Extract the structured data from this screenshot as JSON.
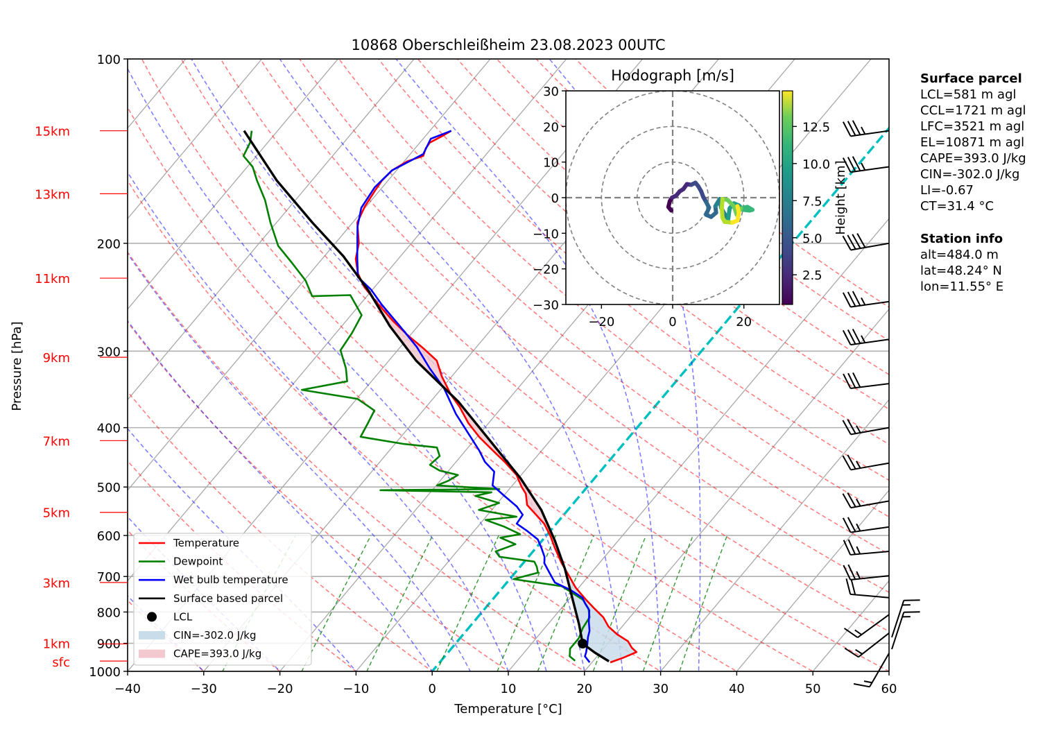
{
  "chart_data": {
    "type": "skew-t",
    "title": "10868 Oberschleißheim 23.08.2023 00UTC",
    "xlabel": "Temperature [°C]",
    "ylabel": "Pressure [hPa]",
    "xlim": [
      -40,
      60
    ],
    "ylim": [
      1000,
      100
    ],
    "x_ticks": [
      -40,
      -30,
      -20,
      -10,
      0,
      10,
      20,
      30,
      40,
      50,
      60
    ],
    "x_tick_labels": [
      "−40",
      "−30",
      "−20",
      "−10",
      "0",
      "10",
      "20",
      "30",
      "40",
      "50",
      "60"
    ],
    "y_ticks": [
      100,
      200,
      300,
      400,
      500,
      600,
      700,
      800,
      900,
      1000
    ],
    "y_tick_labels": [
      "100",
      "200",
      "300",
      "400",
      "500",
      "600",
      "700",
      "800",
      "900",
      "1000"
    ],
    "height_markers": [
      {
        "label": "15km",
        "p": 131
      },
      {
        "label": "13km",
        "p": 166
      },
      {
        "label": "11km",
        "p": 228
      },
      {
        "label": "9km",
        "p": 307
      },
      {
        "label": "7km",
        "p": 420
      },
      {
        "label": "5km",
        "p": 550
      },
      {
        "label": "3km",
        "p": 716
      },
      {
        "label": "1km",
        "p": 902
      },
      {
        "label": "sfc",
        "p": 962
      }
    ],
    "grid": true,
    "isotherm_highlight_c": 0,
    "isotherms_c": [
      -120,
      -110,
      -100,
      -90,
      -80,
      -70,
      -60,
      -50,
      -40,
      -30,
      -20,
      -10,
      0,
      10,
      20,
      30,
      40,
      50,
      60
    ],
    "dry_adiabats_c": [
      -30,
      -20,
      -10,
      0,
      10,
      20,
      30,
      40,
      50,
      60,
      70,
      80,
      90,
      100,
      110,
      120,
      130,
      140,
      150,
      160
    ],
    "moist_adiabats_c": [
      -30,
      -20,
      -10,
      0,
      5,
      10,
      15,
      20,
      25,
      30,
      35
    ],
    "mixing_ratios_gkg": [
      0.4,
      1,
      2,
      4,
      7,
      10,
      16,
      24,
      32
    ],
    "series": [
      {
        "name": "Temperature",
        "color": "#ff0000",
        "points": [
          [
            967,
            22.4
          ],
          [
            950,
            23.6
          ],
          [
            930,
            24.7
          ],
          [
            915,
            23.6
          ],
          [
            893,
            22.4
          ],
          [
            870,
            20.2
          ],
          [
            845,
            18.2
          ],
          [
            816,
            16.5
          ],
          [
            790,
            14.4
          ],
          [
            764,
            12.3
          ],
          [
            730,
            9.6
          ],
          [
            698,
            7.4
          ],
          [
            665,
            5.0
          ],
          [
            629,
            2.5
          ],
          [
            600,
            0.5
          ],
          [
            574,
            -1.6
          ],
          [
            550,
            -4.2
          ],
          [
            535,
            -5.9
          ],
          [
            513,
            -7.3
          ],
          [
            500,
            -8.6
          ],
          [
            478,
            -10.6
          ],
          [
            455,
            -13.6
          ],
          [
            436,
            -16.4
          ],
          [
            415,
            -19.6
          ],
          [
            393,
            -22.7
          ],
          [
            370,
            -25.6
          ],
          [
            354,
            -28.0
          ],
          [
            330,
            -31.3
          ],
          [
            311,
            -33.7
          ],
          [
            297,
            -36.8
          ],
          [
            284,
            -40.0
          ],
          [
            268,
            -43.8
          ],
          [
            252,
            -47.5
          ],
          [
            236,
            -51.3
          ],
          [
            224,
            -53.7
          ],
          [
            212,
            -55.6
          ],
          [
            200,
            -56.9
          ],
          [
            185,
            -59.4
          ],
          [
            174,
            -60.2
          ],
          [
            164,
            -60.6
          ],
          [
            158,
            -60.8
          ],
          [
            152,
            -60.6
          ],
          [
            147,
            -59.6
          ],
          [
            144,
            -58.1
          ],
          [
            140,
            -58.6
          ],
          [
            137,
            -58.7
          ],
          [
            134,
            -57.9
          ],
          [
            131,
            -57.2
          ]
        ]
      },
      {
        "name": "Dewpoint",
        "color": "#008000",
        "points": [
          [
            961,
            17.6
          ],
          [
            945,
            16.4
          ],
          [
            918,
            15.6
          ],
          [
            900,
            15.6
          ],
          [
            883,
            15.6
          ],
          [
            850,
            15.0
          ],
          [
            816,
            14.7
          ],
          [
            790,
            13.6
          ],
          [
            764,
            11.9
          ],
          [
            745,
            9.8
          ],
          [
            726,
            7.6
          ],
          [
            707,
            0.5
          ],
          [
            690,
            3.0
          ],
          [
            675,
            2.2
          ],
          [
            662,
            1.3
          ],
          [
            650,
            -3.8
          ],
          [
            637,
            -4.9
          ],
          [
            620,
            -3.1
          ],
          [
            605,
            -5.8
          ],
          [
            597,
            -3.6
          ],
          [
            580,
            -6.6
          ],
          [
            566,
            -9.7
          ],
          [
            559,
            -6.0
          ],
          [
            545,
            -11.7
          ],
          [
            531,
            -9.8
          ],
          [
            517,
            -13.7
          ],
          [
            510,
            -12.0
          ],
          [
            506,
            -26.8
          ],
          [
            504,
            -11.3
          ],
          [
            497,
            -19.9
          ],
          [
            488,
            -18.9
          ],
          [
            478,
            -18.3
          ],
          [
            470,
            -21.2
          ],
          [
            460,
            -23.1
          ],
          [
            445,
            -22.8
          ],
          [
            431,
            -24.1
          ],
          [
            425,
            -29.0
          ],
          [
            414,
            -35.3
          ],
          [
            395,
            -35.8
          ],
          [
            375,
            -36.4
          ],
          [
            359,
            -39.9
          ],
          [
            347,
            -48.2
          ],
          [
            336,
            -43.2
          ],
          [
            320,
            -44.8
          ],
          [
            299,
            -47.5
          ],
          [
            280,
            -47.9
          ],
          [
            262,
            -48.6
          ],
          [
            243,
            -52.3
          ],
          [
            244,
            -57.2
          ],
          [
            230,
            -59.8
          ],
          [
            215,
            -63.6
          ],
          [
            202,
            -67.2
          ],
          [
            185,
            -70.8
          ],
          [
            170,
            -74.0
          ],
          [
            158,
            -77.2
          ],
          [
            150,
            -79.3
          ],
          [
            144,
            -81.7
          ],
          [
            137,
            -82.3
          ],
          [
            131,
            -83.4
          ]
        ]
      },
      {
        "name": "Wet bulb temperature",
        "color": "#0000ff",
        "points": [
          [
            967,
            19.7
          ],
          [
            945,
            18.4
          ],
          [
            930,
            18.1
          ],
          [
            900,
            17.3
          ],
          [
            880,
            16.7
          ],
          [
            859,
            16.2
          ],
          [
            830,
            15.1
          ],
          [
            795,
            13.9
          ],
          [
            775,
            12.6
          ],
          [
            758,
            11.6
          ],
          [
            735,
            9.0
          ],
          [
            716,
            6.3
          ],
          [
            690,
            4.5
          ],
          [
            666,
            2.8
          ],
          [
            650,
            2.1
          ],
          [
            630,
            0.8
          ],
          [
            609,
            -0.7
          ],
          [
            590,
            -3.0
          ],
          [
            574,
            -5.2
          ],
          [
            555,
            -5.4
          ],
          [
            538,
            -7.1
          ],
          [
            517,
            -9.9
          ],
          [
            497,
            -12.6
          ],
          [
            472,
            -13.9
          ],
          [
            455,
            -16.2
          ],
          [
            436,
            -18.2
          ],
          [
            409,
            -21.5
          ],
          [
            380,
            -25.3
          ],
          [
            345,
            -29.7
          ],
          [
            320,
            -33.8
          ],
          [
            295,
            -37.9
          ],
          [
            272,
            -42.6
          ],
          [
            252,
            -47.1
          ],
          [
            238,
            -50.2
          ],
          [
            227,
            -53.3
          ],
          [
            212,
            -55.4
          ],
          [
            200,
            -57.1
          ],
          [
            188,
            -58.9
          ],
          [
            175,
            -60.5
          ],
          [
            162,
            -61.0
          ],
          [
            152,
            -60.6
          ],
          [
            143,
            -58.3
          ],
          [
            135,
            -59.0
          ],
          [
            131,
            -57.2
          ]
        ]
      },
      {
        "name": "Surface based parcel",
        "color": "#000000",
        "points": [
          [
            963,
            22.1
          ],
          [
            932,
            19.3
          ],
          [
            901,
            16.7
          ],
          [
            838,
            14.1
          ],
          [
            755,
            10.1
          ],
          [
            680,
            6.1
          ],
          [
            612,
            1.7
          ],
          [
            545,
            -3.5
          ],
          [
            484,
            -9.7
          ],
          [
            425,
            -17.2
          ],
          [
            363,
            -26.3
          ],
          [
            311,
            -36.4
          ],
          [
            273,
            -43.7
          ],
          [
            239,
            -50.4
          ],
          [
            210,
            -57.5
          ],
          [
            185,
            -65.3
          ],
          [
            158,
            -74.6
          ],
          [
            131,
            -84.4
          ]
        ]
      }
    ],
    "lcl_point": {
      "p": 901,
      "t": 16.7
    },
    "shading": [
      {
        "name": "CIN",
        "color": "#c9dcea",
        "p_range": [
          967,
          592
        ]
      },
      {
        "name": "CAPE",
        "color": "#f2c9cf",
        "p_range": [
          592,
          242
        ]
      }
    ],
    "legend": {
      "position": "lower-left",
      "entries": [
        {
          "label": "Temperature",
          "kind": "line",
          "color": "#ff0000"
        },
        {
          "label": "Dewpoint",
          "kind": "line",
          "color": "#008000"
        },
        {
          "label": "Wet bulb temperature",
          "kind": "line",
          "color": "#0000ff"
        },
        {
          "label": "Surface based parcel",
          "kind": "line",
          "color": "#000000"
        },
        {
          "label": "LCL",
          "kind": "marker",
          "color": "#000000"
        },
        {
          "label": "CIN=-302.0 J/kg",
          "kind": "patch",
          "color": "#c9dcea"
        },
        {
          "label": "CAPE=393.0 J/kg",
          "kind": "patch",
          "color": "#f2c9cf"
        }
      ]
    },
    "wind_barbs": [
      {
        "p": 131,
        "dir_deg": 262,
        "speed_kt": 35
      },
      {
        "p": 150,
        "dir_deg": 262,
        "speed_kt": 35
      },
      {
        "p": 200,
        "dir_deg": 260,
        "speed_kt": 40
      },
      {
        "p": 249,
        "dir_deg": 262,
        "speed_kt": 35
      },
      {
        "p": 287,
        "dir_deg": 262,
        "speed_kt": 35
      },
      {
        "p": 339,
        "dir_deg": 263,
        "speed_kt": 30
      },
      {
        "p": 400,
        "dir_deg": 260,
        "speed_kt": 25
      },
      {
        "p": 457,
        "dir_deg": 260,
        "speed_kt": 25
      },
      {
        "p": 527,
        "dir_deg": 260,
        "speed_kt": 25
      },
      {
        "p": 581,
        "dir_deg": 262,
        "speed_kt": 25
      },
      {
        "p": 637,
        "dir_deg": 265,
        "speed_kt": 25
      },
      {
        "p": 698,
        "dir_deg": 264,
        "speed_kt": 25
      },
      {
        "p": 758,
        "dir_deg": 275,
        "speed_kt": 20
      },
      {
        "p": 808,
        "dir_deg": 234,
        "speed_kt": 15
      },
      {
        "p": 866,
        "dir_deg": 232,
        "speed_kt": 15
      },
      {
        "p": 934,
        "dir_deg": 210,
        "speed_kt": 15
      },
      {
        "p": 880,
        "dir_deg": 18,
        "speed_kt": 15
      },
      {
        "p": 920,
        "dir_deg": 18,
        "speed_kt": 15
      }
    ],
    "hodograph": {
      "title": "Hodograph [m/s]",
      "xlim": [
        -30,
        30
      ],
      "ylim": [
        -30,
        30
      ],
      "x_ticks": [
        -20,
        0,
        20
      ],
      "x_tick_labels": [
        "−20",
        "0",
        "20"
      ],
      "y_ticks": [
        30,
        20,
        10,
        0,
        -10,
        -20,
        -30
      ],
      "y_tick_labels": [
        "30",
        "20",
        "10",
        "0",
        "−10",
        "−20",
        "−30"
      ],
      "rings_ms": [
        10,
        20,
        30
      ],
      "colorbar": {
        "label": "Height [km]",
        "range": [
          0.5,
          14.9
        ],
        "ticks": [
          2.5,
          5.0,
          7.5,
          10.0,
          12.5
        ],
        "tick_labels": [
          "2.5",
          "5.0",
          "7.5",
          "10.0",
          "12.5"
        ]
      },
      "points": [
        [
          -0.4,
          -3.6,
          0.5
        ],
        [
          -1.2,
          -2.6,
          0.8
        ],
        [
          -0.8,
          -1.0,
          1.1
        ],
        [
          -0.2,
          0.0,
          1.4
        ],
        [
          1.0,
          0.6,
          1.7
        ],
        [
          2.0,
          1.8,
          2.0
        ],
        [
          3.0,
          2.4,
          2.3
        ],
        [
          4.0,
          3.8,
          2.6
        ],
        [
          5.2,
          3.6,
          2.9
        ],
        [
          6.4,
          4.2,
          3.2
        ],
        [
          7.2,
          3.2,
          3.5
        ],
        [
          8.0,
          1.8,
          3.8
        ],
        [
          8.6,
          0.2,
          4.1
        ],
        [
          9.4,
          -1.2,
          4.4
        ],
        [
          10.2,
          -2.8,
          4.7
        ],
        [
          9.4,
          -4.8,
          5.0
        ],
        [
          10.8,
          -5.4,
          5.4
        ],
        [
          12.2,
          -4.2,
          5.8
        ],
        [
          12.0,
          -2.4,
          6.2
        ],
        [
          13.2,
          -0.4,
          6.6
        ],
        [
          13.6,
          -2.8,
          7.0
        ],
        [
          14.6,
          -4.6,
          7.4
        ],
        [
          15.6,
          -6.0,
          7.8
        ],
        [
          16.0,
          -3.0,
          8.2
        ],
        [
          17.2,
          -1.6,
          8.6
        ],
        [
          18.6,
          -2.2,
          9.0
        ],
        [
          19.8,
          -3.4,
          9.4
        ],
        [
          21.6,
          -3.6,
          9.8
        ],
        [
          22.4,
          -3.4,
          10.2
        ],
        [
          21.0,
          -2.6,
          10.6
        ],
        [
          19.2,
          -3.0,
          11.0
        ],
        [
          18.0,
          -4.8,
          11.4
        ],
        [
          17.2,
          -2.4,
          11.8
        ],
        [
          15.4,
          -0.6,
          12.2
        ],
        [
          14.0,
          -0.4,
          12.6
        ],
        [
          13.8,
          -2.8,
          13.0
        ],
        [
          14.0,
          -5.6,
          13.4
        ],
        [
          14.6,
          -6.8,
          13.7
        ],
        [
          16.8,
          -7.0,
          14.0
        ],
        [
          18.2,
          -6.4,
          14.3
        ],
        [
          18.6,
          -4.2,
          14.6
        ],
        [
          18.2,
          -2.4,
          14.9
        ]
      ]
    }
  },
  "info": {
    "surface_heading": "Surface parcel",
    "surface_lines": [
      "LCL=581 m agl",
      "CCL=1721 m agl",
      "LFC=3521 m agl",
      "EL=10871 m agl",
      "CAPE=393.0 J/kg",
      "CIN=-302.0 J/kg",
      "LI=-0.67",
      "CT=31.4 °C"
    ],
    "station_heading": "Station info",
    "station_lines": [
      "alt=484.0 m",
      "lat=48.24° N",
      "lon=11.55° E"
    ]
  }
}
